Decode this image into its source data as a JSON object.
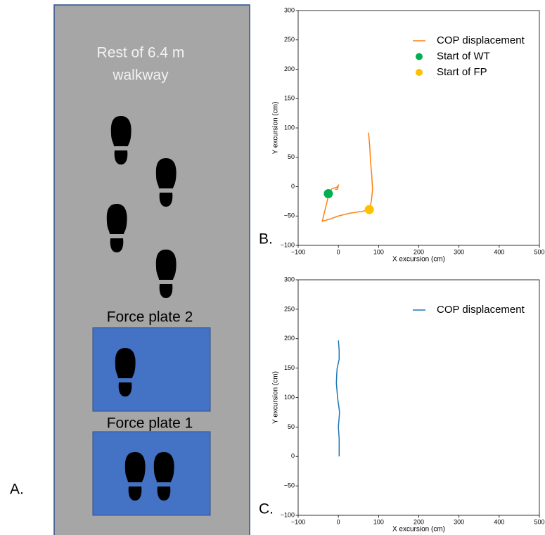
{
  "panel_a": {
    "label": "A.",
    "walkway": [
      "Rest of 6.4 m",
      "walkway"
    ],
    "plate2": "Force plate 2",
    "plate1": "Force plate 1"
  },
  "chart_data": [
    {
      "type": "line",
      "label": "B.",
      "xlabel": "X excursion (cm)",
      "ylabel": "Y excursion (cm)",
      "xlim": [
        -100,
        500
      ],
      "ylim": [
        -100,
        300
      ],
      "xticks": [
        {
          "value": -100,
          "label": "−100"
        },
        0,
        100,
        200,
        300,
        400,
        500
      ],
      "yticks": [
        {
          "value": -100,
          "label": "−100"
        },
        {
          "value": -50,
          "label": "−50"
        },
        0,
        50,
        100,
        150,
        200,
        250,
        300
      ],
      "grid": false,
      "legend": "upper right",
      "series": [
        {
          "name": "COP displacement",
          "color": "#ff7f0e",
          "type": "line",
          "x": [
            75,
            78,
            80,
            83,
            85,
            82,
            77,
            60,
            30,
            0,
            -20,
            -40,
            -35,
            -28,
            -22,
            -15,
            -8,
            -4,
            0,
            -2,
            -8
          ],
          "values": [
            92,
            69,
            43,
            20,
            -5,
            -25,
            -39,
            -42,
            -45,
            -50,
            -55,
            -59,
            -45,
            -25,
            -8,
            -3,
            -2,
            -1,
            2,
            -4,
            -5
          ]
        },
        {
          "name": "Start of WT",
          "color": "#00b050",
          "type": "scatter",
          "x": [
            -25
          ],
          "values": [
            -12
          ]
        },
        {
          "name": "Start of FP",
          "color": "#ffc000",
          "type": "scatter",
          "x": [
            77
          ],
          "values": [
            -39
          ]
        }
      ]
    },
    {
      "type": "line",
      "label": "C.",
      "xlabel": "X excursion (cm)",
      "ylabel": "Y excursion (cm)",
      "xlim": [
        -100,
        500
      ],
      "ylim": [
        -100,
        300
      ],
      "xticks": [
        {
          "value": -100,
          "label": "−100"
        },
        0,
        100,
        200,
        300,
        400,
        500
      ],
      "yticks": [
        {
          "value": -100,
          "label": "−100"
        },
        {
          "value": -50,
          "label": "−50"
        },
        0,
        50,
        100,
        150,
        200,
        250,
        300
      ],
      "grid": false,
      "legend": "upper right",
      "series": [
        {
          "name": "COP displacement",
          "color": "#1f77b4",
          "type": "line",
          "x": [
            2,
            2,
            0,
            3,
            0,
            -2,
            -5,
            -4,
            -3,
            2,
            2,
            0
          ],
          "values": [
            0,
            30,
            50,
            75,
            90,
            100,
            125,
            140,
            150,
            165,
            180,
            197
          ]
        }
      ]
    }
  ]
}
